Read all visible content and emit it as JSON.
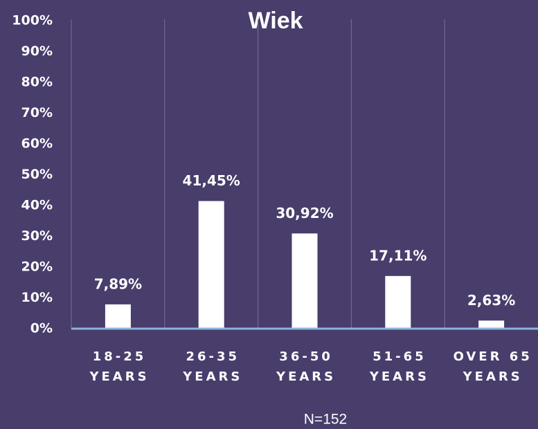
{
  "chart_data": {
    "type": "bar",
    "title": "Wiek",
    "categories": [
      "18-25 YEARS",
      "26-35 YEARS",
      "36-50 YEARS",
      "51-65 YEARS",
      "OVER 65 YEARS"
    ],
    "values": [
      7.89,
      41.45,
      30.92,
      17.11,
      2.63
    ],
    "value_labels": [
      "7,89%",
      "41,45%",
      "30,92%",
      "17,11%",
      "2,63%"
    ],
    "color": "#ffffff",
    "ylim": [
      0,
      100
    ],
    "yticks": [
      {
        "value": 0,
        "label": "0%"
      },
      {
        "value": 10,
        "label": "10%"
      },
      {
        "value": 20,
        "label": "20%"
      },
      {
        "value": 30,
        "label": "30%"
      },
      {
        "value": 40,
        "label": "40%"
      },
      {
        "value": 50,
        "label": "50%"
      },
      {
        "value": 60,
        "label": "60%"
      },
      {
        "value": 70,
        "label": "70%"
      },
      {
        "value": 80,
        "label": "80%"
      },
      {
        "value": 90,
        "label": "90%"
      },
      {
        "value": 100,
        "label": "100%"
      }
    ],
    "annotation": "N=152"
  }
}
